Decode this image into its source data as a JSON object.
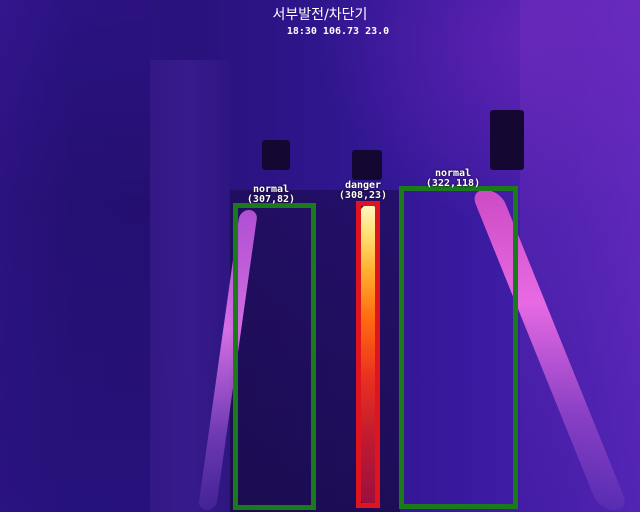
{
  "title": "서부발전/차단기",
  "readout": "18:30 106.73 23.0",
  "detections": [
    {
      "status": "normal",
      "coords": "(307,82)",
      "color": "#1b7a1b"
    },
    {
      "status": "danger",
      "coords": "(308,23)",
      "color": "#e0141e"
    },
    {
      "status": "normal",
      "coords": "(322,118)",
      "color": "#1b7a1b"
    }
  ]
}
